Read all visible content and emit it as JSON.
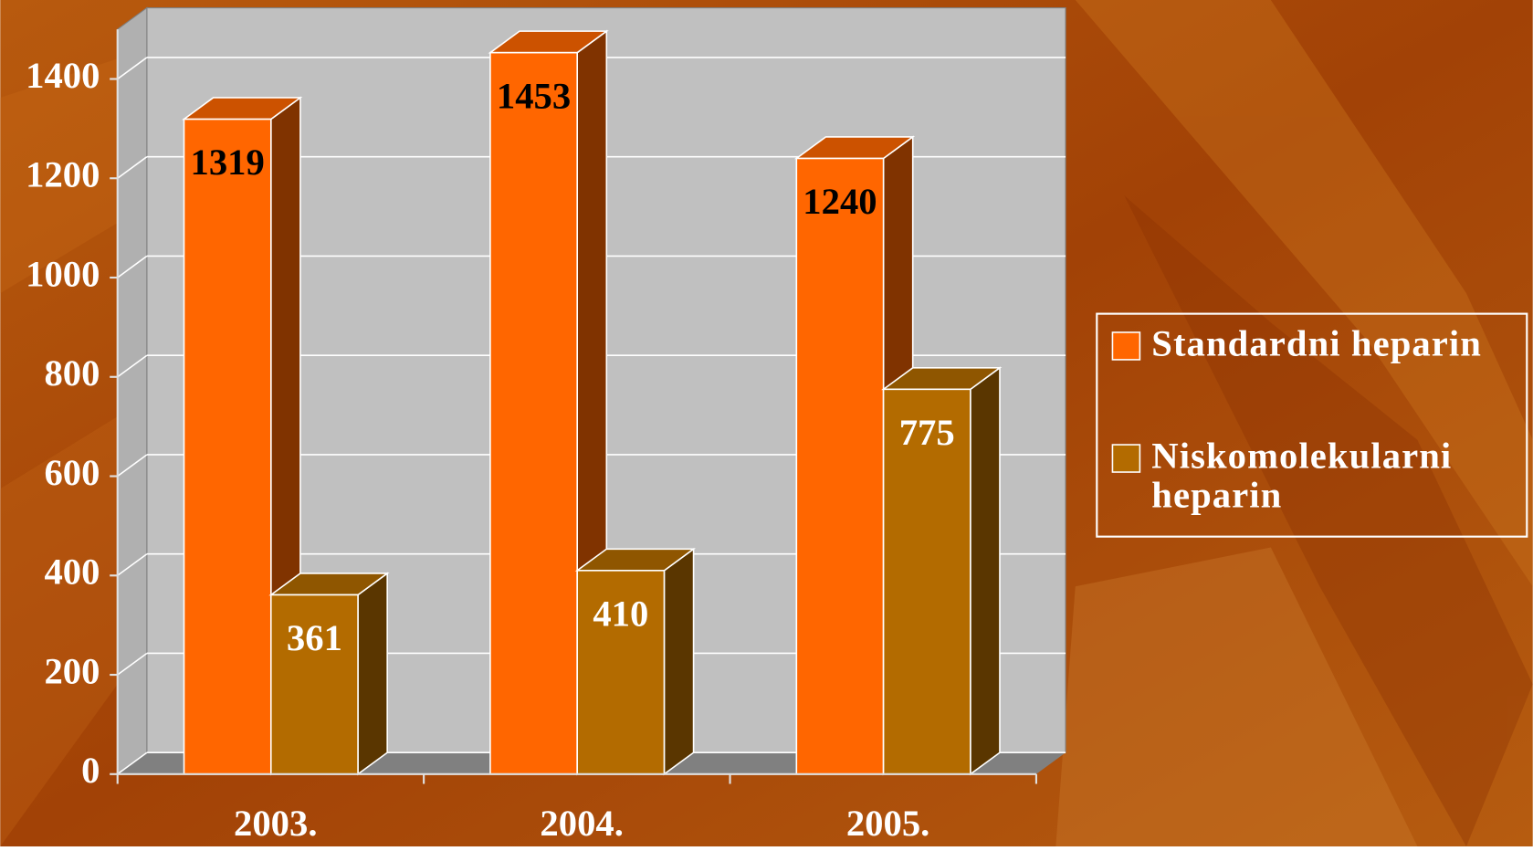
{
  "chart_data": {
    "type": "bar3d",
    "categories": [
      "2003.",
      "2004.",
      "2005."
    ],
    "series": [
      {
        "name": "Standardni heparin",
        "color": "#ff6600",
        "values": [
          1319,
          1453,
          1240
        ]
      },
      {
        "name": "Niskomolekularni heparin",
        "color": "#b36b00",
        "values": [
          361,
          410,
          775
        ]
      }
    ],
    "ylim": [
      0,
      1500
    ],
    "yticks": [
      0,
      200,
      400,
      600,
      800,
      1000,
      1200,
      1400
    ],
    "grid": true,
    "legend": "right"
  }
}
